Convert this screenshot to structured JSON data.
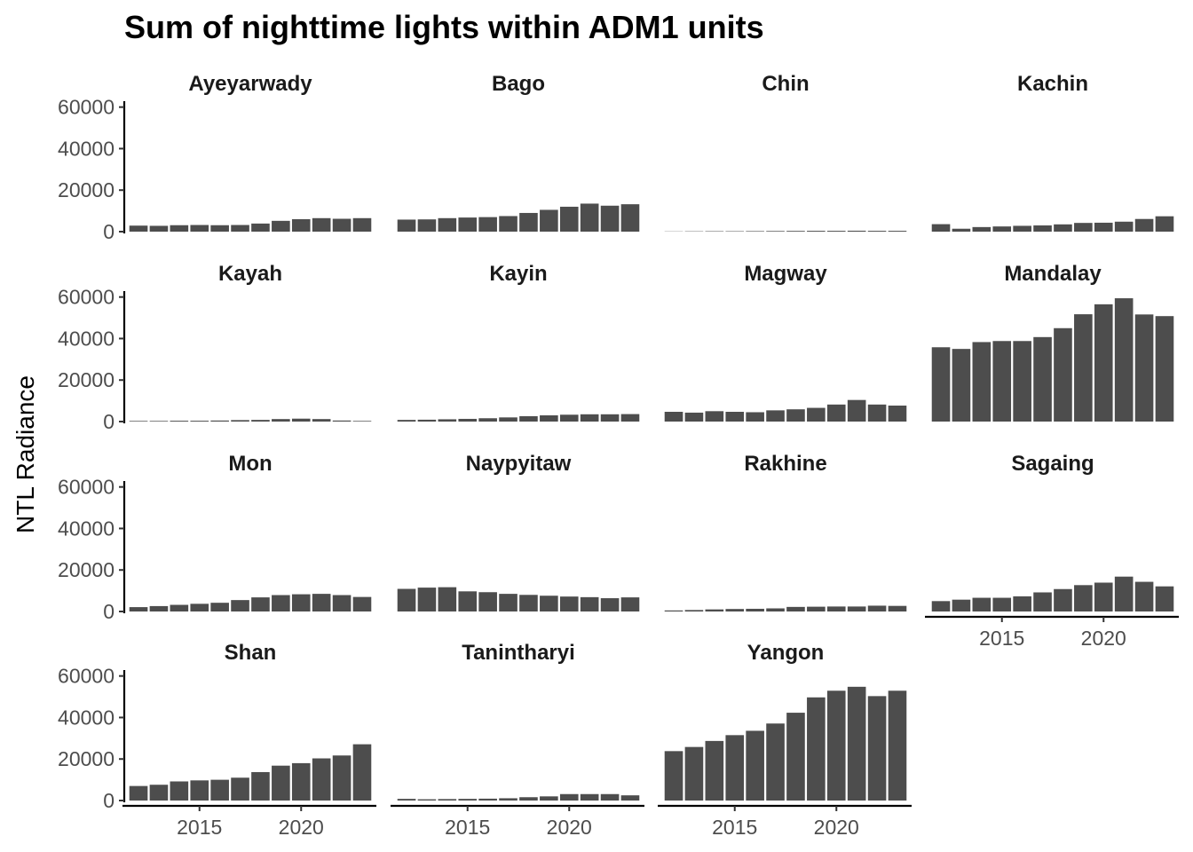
{
  "chart_data": {
    "type": "bar",
    "title": "Sum of nighttime lights within ADM1 units",
    "xlabel": "",
    "ylabel": "NTL Radiance",
    "x": [
      2012,
      2013,
      2014,
      2015,
      2016,
      2017,
      2018,
      2019,
      2020,
      2021,
      2022,
      2023
    ],
    "x_ticks": [
      2015,
      2020
    ],
    "x_tick_labels": [
      "2015",
      "2020"
    ],
    "xlim": [
      2011.3,
      2023.7
    ],
    "ylim": [
      0,
      62000
    ],
    "y_ticks": [
      0,
      20000,
      40000,
      60000
    ],
    "y_tick_labels": [
      "0",
      "20000",
      "40000",
      "60000"
    ],
    "bar_color": "#4d4d4d",
    "grid": false,
    "legend": "none",
    "facets": [
      {
        "name": "Ayeyarwady",
        "values": [
          2900,
          2800,
          3100,
          3200,
          3100,
          3200,
          3900,
          5200,
          6000,
          6500,
          6200,
          6500
        ]
      },
      {
        "name": "Bago",
        "values": [
          5800,
          5900,
          6500,
          6800,
          7000,
          7500,
          9000,
          10500,
          12000,
          13500,
          12500,
          13200
        ]
      },
      {
        "name": "Chin",
        "values": [
          100,
          150,
          200,
          200,
          250,
          300,
          350,
          400,
          400,
          450,
          400,
          400
        ]
      },
      {
        "name": "Kachin",
        "values": [
          3600,
          1400,
          2200,
          2500,
          2800,
          3000,
          3500,
          4200,
          4300,
          4800,
          6100,
          7400
        ]
      },
      {
        "name": "Kayah",
        "values": [
          300,
          300,
          400,
          400,
          500,
          700,
          800,
          1200,
          1400,
          1200,
          500,
          300
        ]
      },
      {
        "name": "Kayin",
        "values": [
          800,
          900,
          1100,
          1300,
          1600,
          2000,
          2600,
          3000,
          3300,
          3500,
          3500,
          3600
        ]
      },
      {
        "name": "Magway",
        "values": [
          4700,
          4300,
          5000,
          4700,
          4500,
          5400,
          5900,
          6600,
          8200,
          10400,
          8200,
          7700
        ]
      },
      {
        "name": "Mandalay",
        "values": [
          35800,
          35000,
          38300,
          38800,
          38800,
          40700,
          45000,
          51700,
          56500,
          59400,
          51600,
          50800
        ]
      },
      {
        "name": "Mon",
        "values": [
          2100,
          2600,
          3200,
          3700,
          4200,
          5500,
          6800,
          7900,
          8300,
          8500,
          7900,
          7000
        ]
      },
      {
        "name": "Naypyitaw",
        "values": [
          10900,
          11500,
          11700,
          9700,
          9300,
          8500,
          8000,
          7600,
          7200,
          6900,
          6400,
          6800
        ]
      },
      {
        "name": "Rakhine",
        "values": [
          500,
          700,
          1000,
          1200,
          1300,
          1500,
          2200,
          2300,
          2400,
          2400,
          2800,
          2700
        ]
      },
      {
        "name": "Sagaing",
        "values": [
          5000,
          5700,
          6600,
          6600,
          7300,
          9200,
          10800,
          12700,
          13900,
          16800,
          14300,
          12100
        ]
      },
      {
        "name": "Shan",
        "values": [
          7000,
          7600,
          9200,
          9700,
          10000,
          11000,
          13700,
          16800,
          18000,
          20300,
          21700,
          27100
        ]
      },
      {
        "name": "Tanintharyi",
        "values": [
          800,
          600,
          700,
          800,
          900,
          1100,
          1600,
          2000,
          3100,
          3100,
          3100,
          2500
        ]
      },
      {
        "name": "Yangon",
        "values": [
          23800,
          25800,
          28700,
          31500,
          33600,
          37100,
          42300,
          49700,
          52900,
          54800,
          50300,
          52900
        ]
      }
    ]
  }
}
